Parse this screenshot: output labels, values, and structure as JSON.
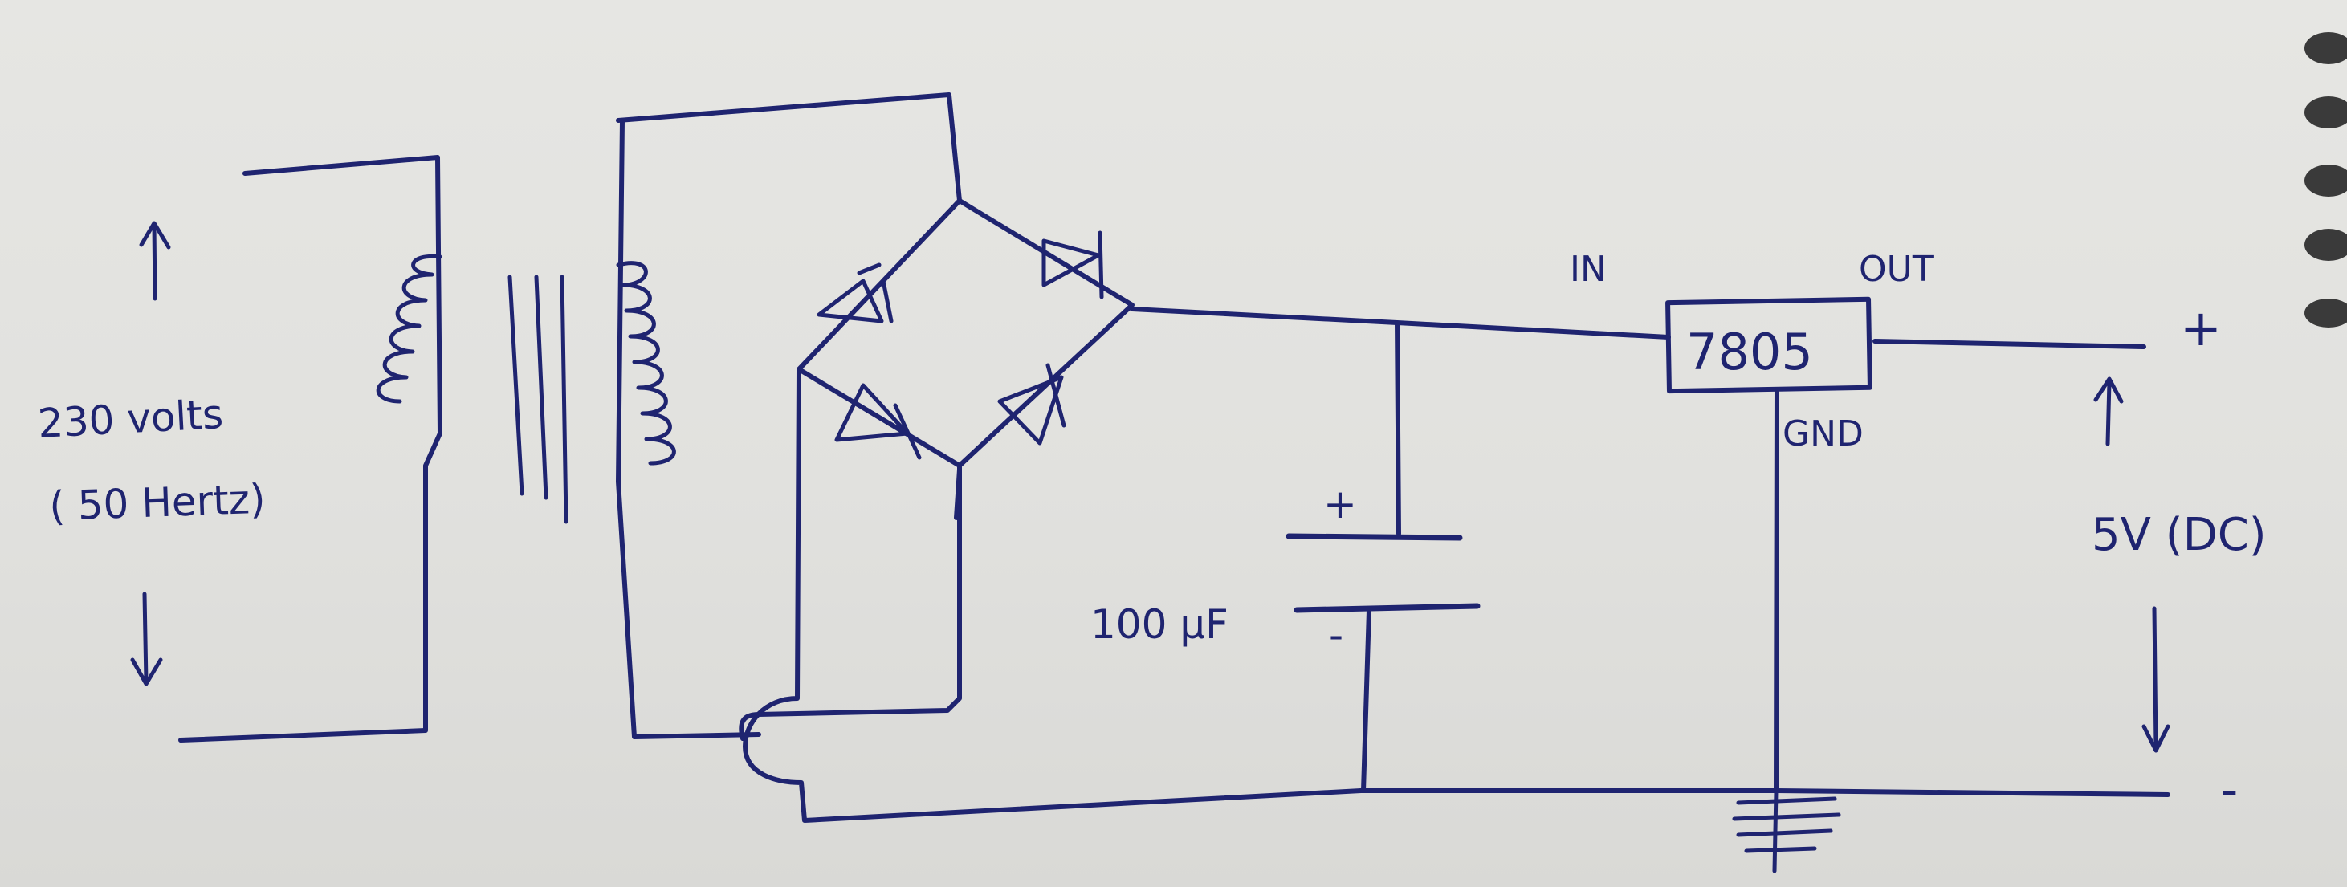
{
  "schematic": {
    "input_label": "230 volts",
    "input_frequency": "( 50 Hertz)",
    "capacitor_value": "100 μF",
    "capacitor_plus": "+",
    "capacitor_minus": "-",
    "regulator_part": "7805",
    "regulator_in": "IN",
    "regulator_out": "OUT",
    "regulator_gnd": "GND",
    "output_voltage": "5V (DC)",
    "output_plus": "+",
    "output_minus": "-"
  },
  "colors": {
    "ink": "#1f2470",
    "paper": "#e4e4e1"
  }
}
